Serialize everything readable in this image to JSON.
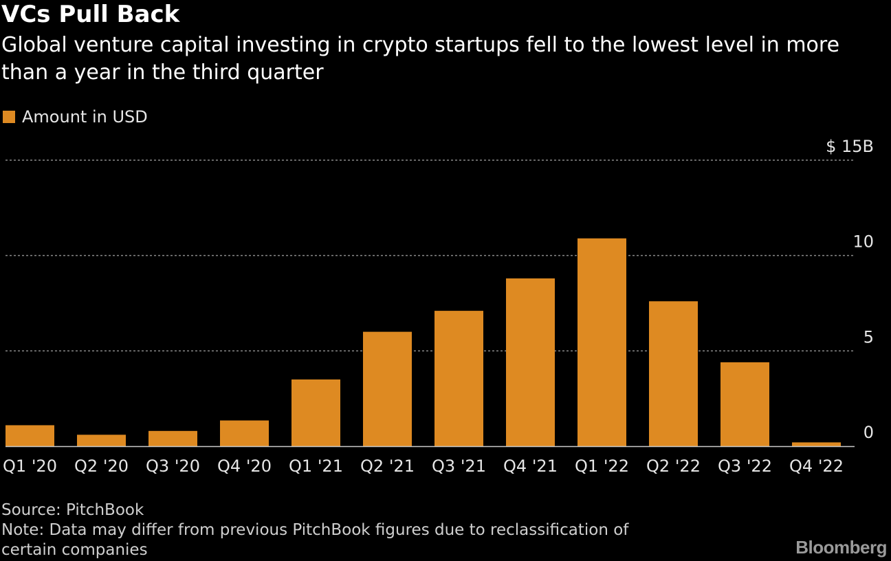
{
  "header": {
    "title": "VCs Pull Back",
    "subtitle": "Global venture capital investing in crypto startups fell to the lowest level in more than a year in the third quarter"
  },
  "legend": {
    "label": "Amount in USD",
    "color": "#DE8A22"
  },
  "chart_data": {
    "type": "bar",
    "categories": [
      "Q1 '20",
      "Q2 '20",
      "Q3 '20",
      "Q4 '20",
      "Q1 '21",
      "Q2 '21",
      "Q3 '21",
      "Q4 '21",
      "Q1 '22",
      "Q2 '22",
      "Q3 '22",
      "Q4 '22"
    ],
    "series": [
      {
        "name": "Amount in USD",
        "values": [
          1.1,
          0.6,
          0.8,
          1.35,
          3.5,
          6.0,
          7.1,
          8.8,
          10.9,
          7.6,
          4.4,
          0.2
        ]
      }
    ],
    "title": "VCs Pull Back",
    "xlabel": "",
    "ylabel": "",
    "ylim": [
      0,
      15
    ],
    "yticks": [
      0,
      5,
      10,
      15
    ],
    "ytick_labels": [
      "0",
      "5",
      "10",
      "$ 15B"
    ],
    "grid": true,
    "legend_position": "top-left"
  },
  "colors": {
    "background": "#000000",
    "bar": "#DE8A22",
    "gridline": "#8a8a8a",
    "axis_line": "#cccccc",
    "text": "#ffffff",
    "tick_text": "#e6e6e6"
  },
  "footer": {
    "source": "Source: PitchBook",
    "note_line1": "Note: Data may differ from previous PitchBook figures due to reclassification of",
    "note_line2": "certain companies"
  },
  "logo": {
    "text": "Bloomberg"
  }
}
